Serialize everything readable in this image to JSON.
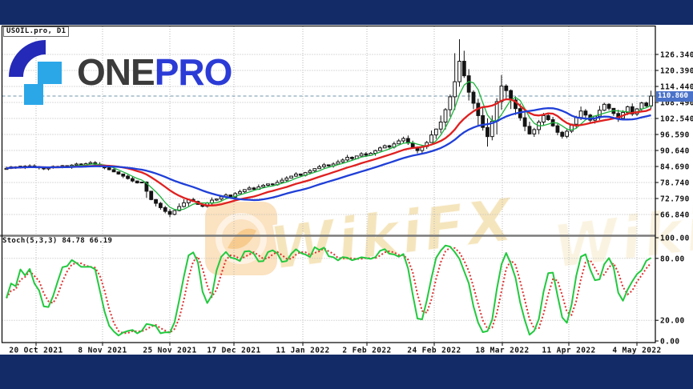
{
  "logo": {
    "part1": "ONE",
    "part2": "PRO"
  },
  "watermark": {
    "text": "WikiFX"
  },
  "chart": {
    "symbol_label": "USOIL.pro, D1",
    "stoch_label": "Stoch(5,3,3) 84.78 66.19",
    "current_price_label": "110.860",
    "price_axis_ticks": [
      "126.340",
      "120.390",
      "114.440",
      "108.490",
      "102.540",
      "96.590",
      "90.640",
      "84.690",
      "78.740",
      "72.790",
      "66.840"
    ],
    "stoch_axis_ticks": [
      "100.00",
      "80.00",
      "20.00",
      "0.00"
    ]
  },
  "chart_data": {
    "type": "candlestick",
    "symbol": "USOIL.pro",
    "timeframe": "D1",
    "current_price": 110.86,
    "price_axis": {
      "min": 66.84,
      "max": 126.34,
      "tick_step": 5.95
    },
    "x_labels": [
      "20 Oct 2021",
      "8 Nov 2021",
      "25 Nov 2021",
      "17 Dec 2021",
      "11 Jan 2022",
      "2 Feb 2022",
      "24 Feb 2022",
      "18 Mar 2022",
      "11 Apr 2022",
      "4 May 2022"
    ],
    "closes": [
      84.0,
      84.5,
      84.2,
      84.8,
      84.4,
      84.9,
      84.6,
      84.2,
      83.8,
      84.3,
      84.7,
      84.4,
      85.0,
      84.6,
      85.2,
      85.6,
      85.1,
      85.7,
      86.1,
      85.5,
      84.8,
      84.2,
      83.5,
      82.7,
      81.9,
      81.1,
      80.2,
      79.3,
      78.6,
      78.9,
      75.5,
      72.4,
      71.0,
      69.4,
      68.0,
      66.9,
      68.3,
      69.8,
      71.2,
      72.4,
      71.7,
      70.6,
      69.9,
      71.1,
      72.2,
      72.6,
      73.4,
      74.1,
      73.3,
      74.6,
      75.3,
      76.1,
      76.7,
      76.2,
      77.1,
      77.7,
      78.2,
      77.9,
      78.8,
      79.6,
      80.4,
      81.1,
      81.9,
      81.4,
      82.4,
      83.1,
      83.9,
      84.6,
      85.3,
      84.9,
      85.6,
      86.4,
      87.1,
      88.1,
      87.6,
      88.6,
      89.4,
      88.9,
      89.6,
      90.6,
      91.6,
      92.4,
      91.9,
      93.1,
      94.2,
      95.1,
      93.4,
      91.7,
      90.6,
      92.1,
      93.6,
      96.4,
      98.6,
      101.2,
      105.8,
      110.6,
      116.2,
      123.8,
      118.4,
      112.3,
      108.2,
      103.6,
      99.2,
      95.8,
      101.5,
      108.8,
      114.6,
      112.9,
      109.4,
      106.2,
      102.8,
      99.6,
      96.8,
      98.4,
      101.2,
      103.6,
      102.1,
      99.8,
      97.4,
      95.9,
      97.8,
      100.4,
      102.9,
      105.3,
      103.8,
      101.9,
      103.4,
      105.6,
      107.8,
      106.3,
      104.4,
      102.6,
      104.8,
      106.9,
      104.2,
      106.1,
      108.3,
      107.2,
      110.86
    ],
    "wick_overrides": {
      "35": {
        "low": 65.8
      },
      "96": {
        "high": 126.8
      },
      "97": {
        "high": 132.0
      }
    },
    "moving_averages": [
      {
        "name": "fast",
        "period": 5,
        "color": "#1db33c",
        "width": 1.3
      },
      {
        "name": "mid",
        "period": 13,
        "color": "#e01f1f",
        "width": 2.3
      },
      {
        "name": "slow",
        "period": 24,
        "color": "#1f3fd8",
        "width": 2.3
      }
    ],
    "stochastic": {
      "k_period": 5,
      "slowing": 3,
      "d_period": 3,
      "levels": [
        80,
        20
      ],
      "last_k": 84.78,
      "last_d": 66.19,
      "k_color": "#22c93e",
      "d_color": "#e03030"
    }
  },
  "colors": {
    "band_navy": "#132b66",
    "price_tag_bg": "#4a72c8",
    "grid": "#b8b8b8",
    "candle": "#141414",
    "current_price_line": "#6f94aa",
    "watermark_text": "rgba(243,225,178,0.85)",
    "watermark_badge": "rgba(242,166,60,0.32)",
    "logo_dark_blue": "#2429b8",
    "logo_light_blue": "#2ba7e8",
    "logo_text_dark": "#3b3b3b",
    "logo_text_blue": "#2b3bd6"
  }
}
